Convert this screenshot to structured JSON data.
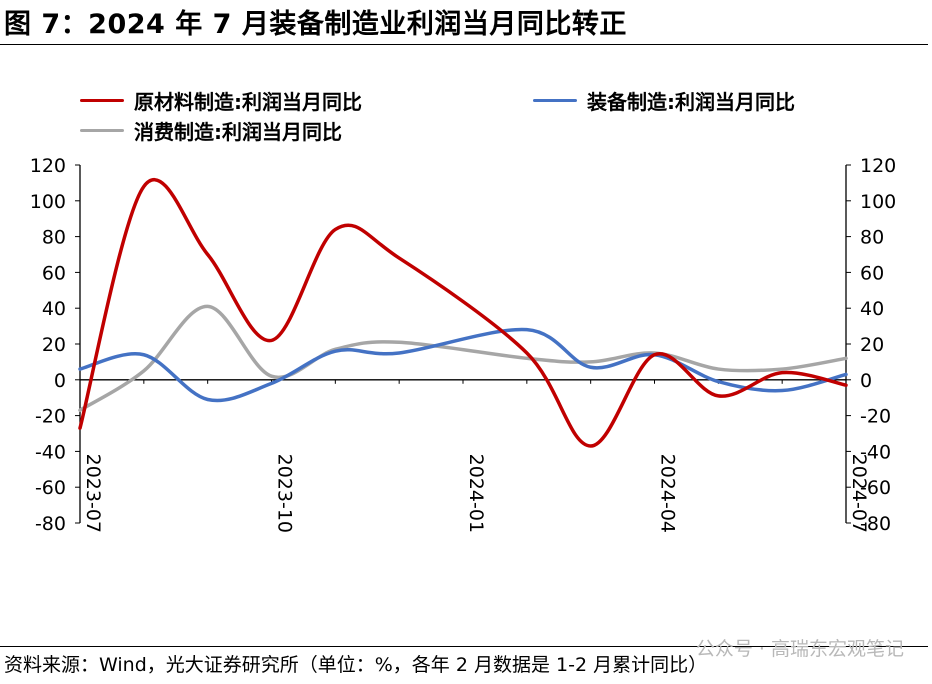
{
  "title": "图 7：2024 年 7 月装备制造业利润当月同比转正",
  "source": "资料来源：Wind，光大证券研究所（单位：%，各年 2 月数据是 1-2 月累计同比）",
  "watermark": "公众号 · 高瑞东宏观笔记",
  "chart_data": {
    "type": "line",
    "title": "",
    "xlabel": "",
    "ylabel": "",
    "ylim": [
      -80,
      120
    ],
    "y_ticks": [
      120,
      100,
      80,
      60,
      40,
      20,
      0,
      -20,
      -40,
      -60,
      -80
    ],
    "x_tick_labels": [
      "2023-07",
      "2023-10",
      "2024-01",
      "2024-04",
      "2024-07"
    ],
    "x": [
      "2023-07",
      "2023-08",
      "2023-09",
      "2023-10",
      "2023-11",
      "2023-12",
      "2024-01",
      "2024-02",
      "2024-03",
      "2024-04",
      "2024-05",
      "2024-06",
      "2024-07"
    ],
    "legend_position": "top",
    "series": [
      {
        "name": "原材料制造:利润当月同比",
        "color": "#c00000",
        "x": [
          "2023-07",
          "2023-08",
          "2023-09",
          "2023-10",
          "2023-11",
          "2023-12",
          "2024-02",
          "2024-03",
          "2024-04",
          "2024-05",
          "2024-06",
          "2024-07"
        ],
        "values": [
          -27,
          108,
          70,
          22,
          84,
          68,
          15,
          -37,
          14,
          -9,
          4,
          -3
        ]
      },
      {
        "name": "装备制造:利润当月同比",
        "color": "#4472c4",
        "x": [
          "2023-07",
          "2023-08",
          "2023-09",
          "2023-10",
          "2023-11",
          "2023-12",
          "2024-02",
          "2024-03",
          "2024-04",
          "2024-05",
          "2024-06",
          "2024-07"
        ],
        "values": [
          6,
          14,
          -11,
          -2,
          16,
          15,
          28,
          7,
          14,
          -1,
          -6,
          3
        ]
      },
      {
        "name": "消费制造:利润当月同比",
        "color": "#a6a6a6",
        "x": [
          "2023-07",
          "2023-08",
          "2023-09",
          "2023-10",
          "2023-11",
          "2023-12",
          "2024-02",
          "2024-03",
          "2024-04",
          "2024-05",
          "2024-06",
          "2024-07"
        ],
        "values": [
          -17,
          5,
          41,
          2,
          17,
          21,
          12,
          10,
          15,
          6,
          6,
          12
        ]
      }
    ]
  }
}
